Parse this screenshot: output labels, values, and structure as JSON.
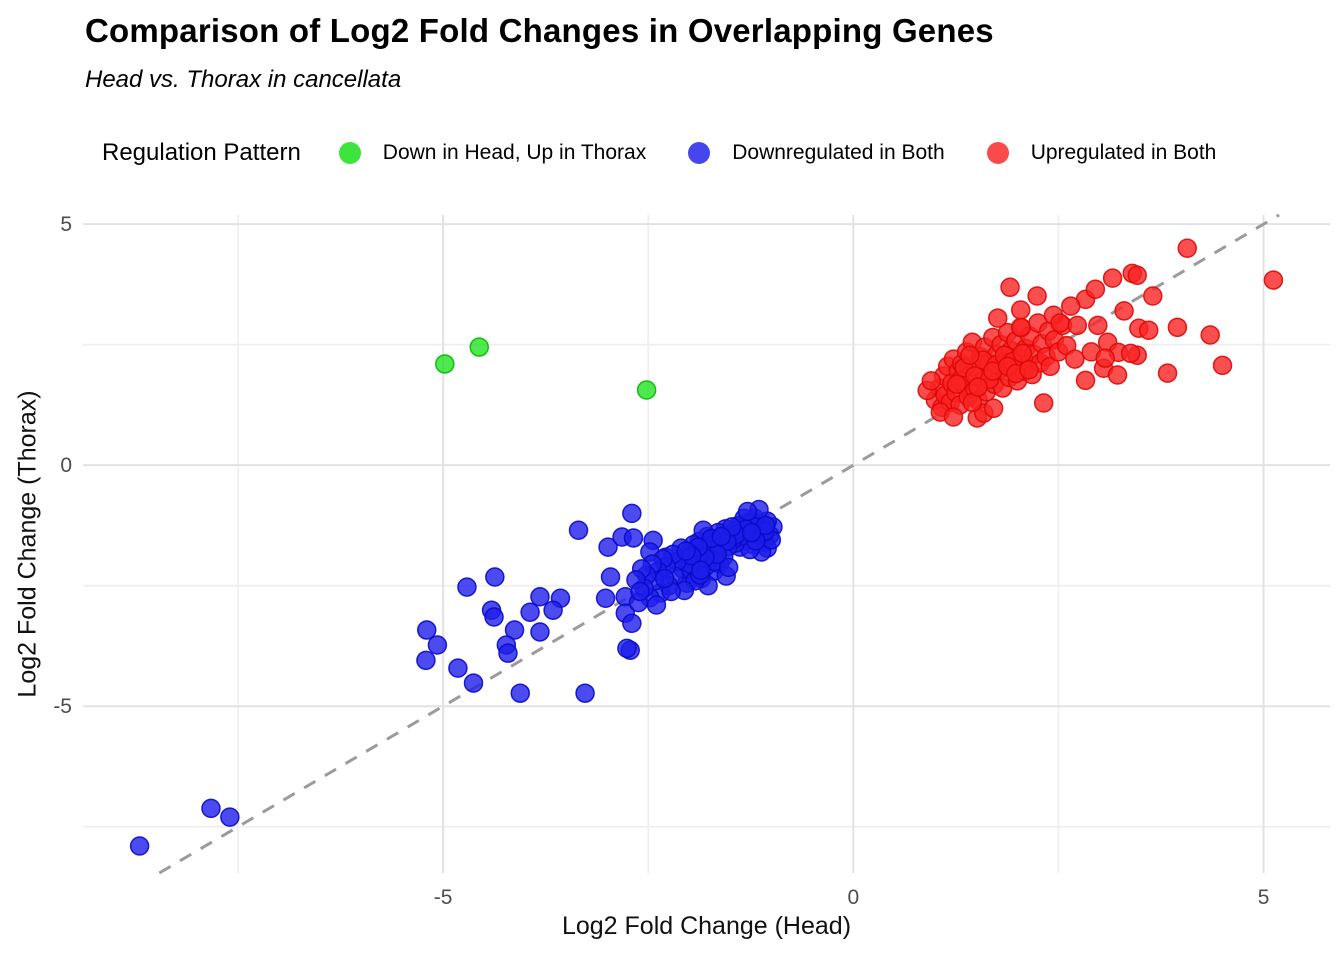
{
  "title": "Comparison of Log2 Fold Changes in Overlapping Genes",
  "subtitle": "Head vs. Thorax in cancellata",
  "legend": {
    "title": "Regulation Pattern",
    "items": [
      {
        "label": "Down in Head, Up in Thorax",
        "color": "#3ce43c"
      },
      {
        "label": "Downregulated in Both",
        "color": "#4646ec"
      },
      {
        "label": "Upregulated in Both",
        "color": "#fa4b4b"
      }
    ]
  },
  "colors": {
    "background": "#ffffff",
    "gridline_major": "#e2e2e2",
    "gridline_minor": "#efefef",
    "identity_line": "#9b9b9b",
    "tick_label": "#4d4d4d",
    "axis_title": "#111111",
    "title": "#000000"
  },
  "chart_data": {
    "type": "scatter",
    "title": "Comparison of Log2 Fold Changes in Overlapping Genes",
    "subtitle": "Head vs. Thorax in cancellata",
    "xlabel": "Log2 Fold Change (Head)",
    "ylabel": "Log2 Fold Change (Thorax)",
    "xlim": [
      -9.39,
      5.81
    ],
    "ylim": [
      -8.46,
      5.19
    ],
    "x_ticks": [
      -5,
      0,
      5
    ],
    "y_ticks": [
      -5,
      0,
      5
    ],
    "x_minor_ticks": [
      -7.5,
      -2.5,
      2.5
    ],
    "y_minor_ticks": [
      -7.5,
      -2.5,
      2.5
    ],
    "grid": true,
    "legend_position": "top",
    "identity_line": {
      "equation": "y = x",
      "style": "dashed",
      "color": "#9b9b9b"
    },
    "series": [
      {
        "name": "Down in Head, Up in Thorax",
        "fill": "rgba(20,225,20,0.75)",
        "stroke": "rgba(0,185,0,0.9)",
        "points": [
          [
            -4.98,
            2.1
          ],
          [
            -4.56,
            2.45
          ],
          [
            -2.52,
            1.56
          ]
        ]
      },
      {
        "name": "Downregulated in Both",
        "fill": "rgba(30,30,235,0.8)",
        "stroke": "rgba(10,10,200,0.9)",
        "points": [
          [
            -8.7,
            -7.9
          ],
          [
            -7.83,
            -7.12
          ],
          [
            -7.6,
            -7.3
          ],
          [
            -5.2,
            -3.42
          ],
          [
            -5.07,
            -3.73
          ],
          [
            -5.21,
            -4.05
          ],
          [
            -4.71,
            -2.53
          ],
          [
            -4.37,
            -2.32
          ],
          [
            -4.41,
            -3.01
          ],
          [
            -4.38,
            -3.15
          ],
          [
            -4.82,
            -4.21
          ],
          [
            -4.63,
            -4.52
          ],
          [
            -4.13,
            -3.42
          ],
          [
            -4.23,
            -3.73
          ],
          [
            -4.21,
            -3.9
          ],
          [
            -4.06,
            -4.73
          ],
          [
            -3.82,
            -3.46
          ],
          [
            -3.94,
            -3.05
          ],
          [
            -3.35,
            -1.35
          ],
          [
            -3.57,
            -2.76
          ],
          [
            -3.82,
            -2.73
          ],
          [
            -3.66,
            -3.01
          ],
          [
            -3.27,
            -4.73
          ],
          [
            -2.99,
            -1.7
          ],
          [
            -2.82,
            -1.49
          ],
          [
            -2.7,
            -1.0
          ],
          [
            -2.68,
            -1.51
          ],
          [
            -2.96,
            -2.32
          ],
          [
            -3.02,
            -2.76
          ],
          [
            -2.78,
            -2.73
          ],
          [
            -2.78,
            -3.07
          ],
          [
            -2.7,
            -3.28
          ],
          [
            -2.72,
            -3.84
          ],
          [
            -2.76,
            -3.8
          ],
          [
            -2.44,
            -1.56
          ],
          [
            -2.48,
            -1.8
          ],
          [
            -2.29,
            -1.91
          ],
          [
            -0.98,
            -1.28
          ],
          [
            -1.02,
            -1.45
          ],
          [
            -1.05,
            -1.16
          ],
          [
            -1.08,
            -1.6
          ],
          [
            -1.1,
            -1.35
          ],
          [
            -1.13,
            -1.22
          ],
          [
            -1.15,
            -1.52
          ],
          [
            -1.18,
            -1.4
          ],
          [
            -1.2,
            -1.1
          ],
          [
            -1.22,
            -1.65
          ],
          [
            -1.25,
            -1.3
          ],
          [
            -1.28,
            -1.48
          ],
          [
            -1.3,
            -1.2
          ],
          [
            -1.32,
            -1.58
          ],
          [
            -1.35,
            -1.38
          ],
          [
            -1.38,
            -1.7
          ],
          [
            -1.4,
            -1.25
          ],
          [
            -1.42,
            -1.5
          ],
          [
            -1.45,
            -1.35
          ],
          [
            -1.05,
            -1.72
          ],
          [
            -1.12,
            -1.8
          ],
          [
            -1.0,
            -1.55
          ],
          [
            -1.26,
            -1.75
          ],
          [
            -1.33,
            -1.1
          ],
          [
            -1.44,
            -1.62
          ],
          [
            -1.17,
            -1.28
          ],
          [
            -1.36,
            -1.47
          ],
          [
            -1.08,
            -1.38
          ],
          [
            -1.23,
            -1.18
          ],
          [
            -1.47,
            -1.55
          ],
          [
            -1.15,
            -0.92
          ],
          [
            -1.29,
            -0.96
          ],
          [
            -1.5,
            -1.45
          ],
          [
            -1.53,
            -1.7
          ],
          [
            -1.56,
            -1.32
          ],
          [
            -1.58,
            -1.9
          ],
          [
            -1.6,
            -1.55
          ],
          [
            -1.63,
            -2.05
          ],
          [
            -1.65,
            -1.4
          ],
          [
            -1.68,
            -1.75
          ],
          [
            -1.7,
            -2.2
          ],
          [
            -1.72,
            -1.6
          ],
          [
            -1.75,
            -1.95
          ],
          [
            -1.78,
            -1.48
          ],
          [
            -1.8,
            -2.1
          ],
          [
            -1.82,
            -1.7
          ],
          [
            -1.85,
            -2.35
          ],
          [
            -1.88,
            -1.58
          ],
          [
            -1.9,
            -1.85
          ],
          [
            -1.92,
            -2.0
          ],
          [
            -1.95,
            -1.65
          ],
          [
            -1.98,
            -2.25
          ],
          [
            -2.0,
            -1.8
          ],
          [
            -2.03,
            -2.45
          ],
          [
            -2.05,
            -1.95
          ],
          [
            -2.08,
            -2.15
          ],
          [
            -2.1,
            -1.72
          ],
          [
            -1.55,
            -2.3
          ],
          [
            -1.62,
            -1.62
          ],
          [
            -1.77,
            -2.5
          ],
          [
            -1.83,
            -1.35
          ],
          [
            -1.93,
            -2.4
          ],
          [
            -2.06,
            -2.6
          ],
          [
            -1.69,
            -2.0
          ],
          [
            -1.87,
            -2.28
          ],
          [
            -1.99,
            -2.05
          ],
          [
            -1.52,
            -2.12
          ],
          [
            -2.15,
            -2.0
          ],
          [
            -2.18,
            -2.3
          ],
          [
            -2.2,
            -1.85
          ],
          [
            -2.25,
            -2.5
          ],
          [
            -2.28,
            -2.1
          ],
          [
            -2.32,
            -1.95
          ],
          [
            -2.35,
            -2.65
          ],
          [
            -2.38,
            -2.2
          ],
          [
            -2.42,
            -2.4
          ],
          [
            -2.45,
            -2.05
          ],
          [
            -2.48,
            -2.75
          ],
          [
            -2.52,
            -2.28
          ],
          [
            -2.55,
            -2.55
          ],
          [
            -2.58,
            -2.15
          ],
          [
            -2.62,
            -2.85
          ],
          [
            -2.65,
            -2.38
          ],
          [
            -2.22,
            -2.62
          ],
          [
            -2.4,
            -2.9
          ],
          [
            -2.3,
            -2.35
          ],
          [
            -2.6,
            -2.62
          ],
          [
            -1.07,
            -1.25
          ],
          [
            -1.19,
            -1.57
          ],
          [
            -1.31,
            -1.33
          ],
          [
            -1.43,
            -1.44
          ],
          [
            -1.54,
            -1.58
          ],
          [
            -1.66,
            -1.85
          ],
          [
            -1.73,
            -1.52
          ],
          [
            -1.81,
            -1.92
          ],
          [
            -1.89,
            -1.7
          ],
          [
            -1.97,
            -1.88
          ],
          [
            -2.04,
            -1.78
          ],
          [
            -1.24,
            -1.4
          ],
          [
            -1.48,
            -1.28
          ],
          [
            -1.61,
            -1.48
          ],
          [
            -1.86,
            -2.18
          ]
        ]
      },
      {
        "name": "Upregulated in Both",
        "fill": "rgba(250,35,35,0.8)",
        "stroke": "rgba(222,8,8,0.9)",
        "points": [
          [
            1.0,
            1.35
          ],
          [
            1.05,
            1.6
          ],
          [
            1.08,
            1.2
          ],
          [
            1.1,
            1.85
          ],
          [
            1.12,
            1.45
          ],
          [
            1.15,
            2.05
          ],
          [
            1.18,
            1.3
          ],
          [
            1.2,
            1.7
          ],
          [
            1.22,
            2.2
          ],
          [
            1.25,
            1.5
          ],
          [
            1.28,
            1.95
          ],
          [
            1.3,
            1.25
          ],
          [
            1.32,
            2.1
          ],
          [
            1.35,
            1.65
          ],
          [
            1.38,
            2.35
          ],
          [
            1.4,
            1.42
          ],
          [
            1.42,
            1.88
          ],
          [
            1.45,
            2.55
          ],
          [
            1.48,
            1.58
          ],
          [
            1.5,
            2.0
          ],
          [
            1.52,
            1.35
          ],
          [
            1.55,
            2.25
          ],
          [
            1.58,
            1.75
          ],
          [
            1.6,
            2.45
          ],
          [
            1.62,
            1.52
          ],
          [
            1.65,
            2.12
          ],
          [
            1.68,
            1.9
          ],
          [
            1.7,
            2.65
          ],
          [
            1.72,
            1.68
          ],
          [
            1.75,
            2.3
          ],
          [
            1.78,
            1.98
          ],
          [
            1.8,
            2.5
          ],
          [
            1.82,
            1.6
          ],
          [
            1.85,
            2.15
          ],
          [
            1.88,
            2.75
          ],
          [
            1.9,
            1.82
          ],
          [
            1.92,
            2.38
          ],
          [
            1.95,
            2.02
          ],
          [
            1.98,
            2.58
          ],
          [
            2.0,
            1.75
          ],
          [
            2.02,
            2.22
          ],
          [
            2.05,
            2.85
          ],
          [
            2.08,
            1.95
          ],
          [
            2.1,
            2.42
          ],
          [
            2.12,
            2.1
          ],
          [
            2.15,
            2.68
          ],
          [
            2.18,
            1.88
          ],
          [
            2.2,
            2.3
          ],
          [
            2.25,
            2.95
          ],
          [
            2.28,
            2.12
          ],
          [
            2.3,
            2.52
          ],
          [
            2.35,
            2.25
          ],
          [
            2.38,
            2.78
          ],
          [
            2.4,
            2.05
          ],
          [
            2.45,
            2.6
          ],
          [
            2.5,
            2.35
          ],
          [
            2.55,
            2.9
          ],
          [
            2.6,
            2.48
          ],
          [
            1.06,
            1.1
          ],
          [
            1.22,
            1.0
          ],
          [
            1.51,
            0.98
          ],
          [
            1.59,
            1.08
          ],
          [
            1.71,
            1.18
          ],
          [
            2.32,
            1.29
          ],
          [
            1.3,
            1.75
          ],
          [
            1.45,
            1.3
          ],
          [
            1.76,
            3.05
          ],
          [
            2.04,
            3.22
          ],
          [
            2.04,
            2.86
          ],
          [
            1.91,
            3.69
          ],
          [
            1.35,
            2.02
          ],
          [
            1.48,
            1.85
          ],
          [
            1.58,
            2.18
          ],
          [
            1.66,
            1.78
          ],
          [
            1.74,
            2.08
          ],
          [
            1.84,
            2.28
          ],
          [
            1.94,
            2.15
          ],
          [
            2.06,
            2.32
          ],
          [
            1.26,
            1.68
          ],
          [
            1.42,
            2.28
          ],
          [
            1.52,
            1.62
          ],
          [
            1.7,
            1.95
          ],
          [
            1.88,
            2.05
          ],
          [
            1.98,
            1.9
          ],
          [
            2.14,
            1.98
          ],
          [
            2.44,
            3.11
          ],
          [
            2.52,
            2.95
          ],
          [
            2.73,
            2.9
          ],
          [
            2.98,
            2.9
          ],
          [
            3.48,
            2.84
          ],
          [
            3.6,
            2.8
          ],
          [
            3.95,
            2.86
          ],
          [
            4.35,
            2.7
          ],
          [
            2.83,
            3.44
          ],
          [
            3.65,
            3.51
          ],
          [
            2.24,
            3.51
          ],
          [
            3.16,
            3.88
          ],
          [
            3.4,
            3.98
          ],
          [
            3.46,
            3.94
          ],
          [
            4.07,
            4.5
          ],
          [
            5.12,
            3.84
          ],
          [
            2.83,
            1.76
          ],
          [
            3.05,
            2.01
          ],
          [
            3.22,
            1.87
          ],
          [
            3.46,
            2.28
          ],
          [
            3.83,
            1.91
          ],
          [
            4.5,
            2.07
          ],
          [
            2.7,
            2.2
          ],
          [
            2.9,
            2.35
          ],
          [
            3.1,
            2.55
          ],
          [
            3.3,
            3.2
          ],
          [
            2.65,
            3.3
          ],
          [
            2.95,
            3.65
          ],
          [
            3.23,
            2.34
          ],
          [
            3.07,
            2.22
          ],
          [
            3.38,
            2.32
          ],
          [
            0.9,
            1.55
          ],
          [
            0.95,
            1.75
          ]
        ]
      }
    ]
  }
}
